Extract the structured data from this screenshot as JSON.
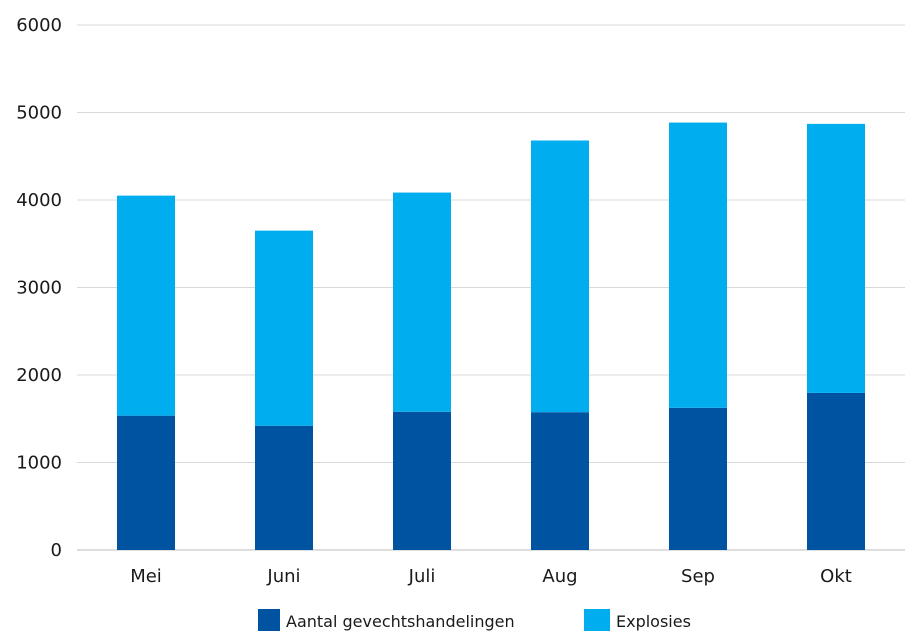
{
  "chart_data": {
    "type": "bar",
    "stacked": true,
    "categories": [
      "Mei",
      "Juni",
      "Juli",
      "Aug",
      "Sep",
      "Okt"
    ],
    "series": [
      {
        "name": "Aantal gevechtshandelingen",
        "values": [
          1535,
          1420,
          1580,
          1575,
          1625,
          1795
        ],
        "color": "#0053a0"
      },
      {
        "name": "Explosies",
        "values": [
          2515,
          2230,
          2505,
          3105,
          3260,
          3075
        ],
        "color": "#00aeef"
      }
    ],
    "ylim": [
      0,
      6000
    ],
    "yticks": [
      "0",
      "1000",
      "2000",
      "3000",
      "4000",
      "5000",
      "6000"
    ],
    "grid": true,
    "legend_position": "bottom",
    "title": "",
    "xlabel": "",
    "ylabel": ""
  }
}
